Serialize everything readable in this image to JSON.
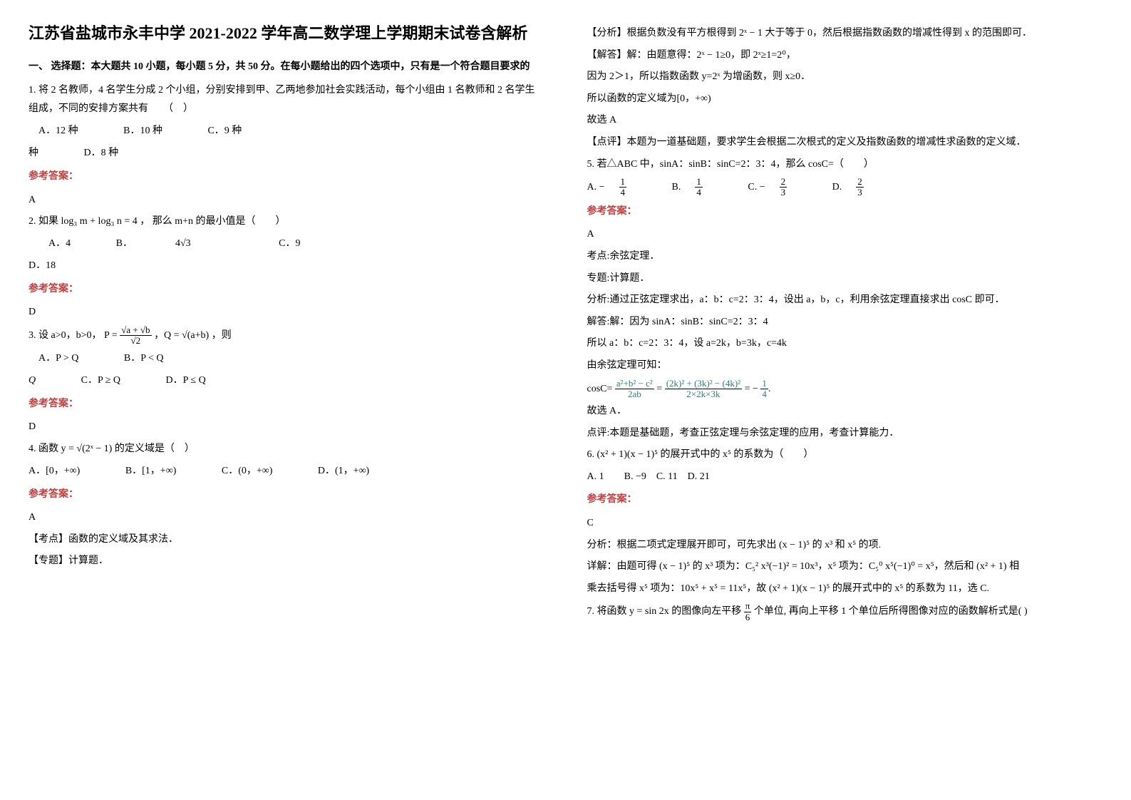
{
  "colors": {
    "ans_label": "#bf4040",
    "teal": "#2b7a7a",
    "text": "#000000",
    "background": "#ffffff"
  },
  "typography": {
    "title_fontsize": 22,
    "body_fontsize": 14,
    "font_family": "SimSun"
  },
  "title": "江苏省盐城市永丰中学 2021-2022 学年高二数学理上学期期末试卷含解析",
  "part1_heading": "一、 选择题：本大题共 10 小题，每小题 5 分，共 50 分。在每小题给出的四个选项中，只有是一个符合题目要求的",
  "q1": {
    "stem": "1. 将 2 名教师，4 名学生分成 2 个小组，分别安排到甲、乙两地参加社会实践活动，每个小组由 1 名教师和 2 名学生组成，不同的安排方案共有　　（　）",
    "optA": "A．12 种",
    "optB": "B．10 种",
    "optC": "C．9 种",
    "optD": "D．8 种",
    "ans_label": "参考答案：",
    "ans": "A"
  },
  "q2": {
    "stem_pre": "2. 如果 ",
    "expr": "log₃ m + log₃ n = 4",
    "stem_post": " ， 那么 m+n 的最小值是（　　）",
    "optA": "A．4",
    "optB_pre": "B．",
    "optB_expr": "4√3",
    "optC": "C．9",
    "optD": "D．18",
    "ans_label": "参考答案：",
    "ans": "D"
  },
  "q3": {
    "stem_pre": "3. 设 a>0，b>0，",
    "P_lhs": "P = ",
    "P_num": "√a + √b",
    "P_den": "√2",
    "Q_lhs": "，Q = ",
    "Q_expr": "√(a+b)",
    "stem_post": "，则",
    "optA": "A．P > Q",
    "optB": "B．P < Q",
    "optC": "C．P ≥ Q",
    "optD": "D．P ≤ Q",
    "ans_label": "参考答案：",
    "ans": "D"
  },
  "q4": {
    "stem_pre": "4. 函数 ",
    "fn": "y = √(2ˣ − 1)",
    "stem_post": " 的定义域是（　）",
    "optA": "A．[0，+∞)",
    "optB": "B．[1，+∞)",
    "optC": "C．(0，+∞)",
    "optD": "D．(1，+∞)",
    "ans_label": "参考答案：",
    "ans": "A",
    "kaodian": "【考点】函数的定义域及其求法．",
    "zhuanti": "【专题】计算题．",
    "fenxi": "【分析】根据负数没有平方根得到 2ˣ − 1 大于等于 0，然后根据指数函数的增减性得到 x 的范围即可．",
    "jieda_head": "【解答】解：由题意得：2ˣ − 1≥0，即 2ˣ≥1=2⁰，",
    "jieda_l2": "因为 2＞1，所以指数函数 y=2ˣ 为增函数，则 x≥0．",
    "jieda_l3": "所以函数的定义域为[0，+∞)",
    "jieda_l4": "故选 A",
    "dianping": "【点评】本题为一道基础题，要求学生会根据二次根式的定义及指数函数的增减性求函数的定义域．"
  },
  "q5": {
    "stem": "5. 若△ABC 中，sinA：sinB：sinC=2：3：4，那么 cosC=（　　）",
    "optA_pre": "A. −",
    "optB_pre": "B. ",
    "optC_pre": "C. −",
    "optD_pre": "D. ",
    "f14n": "1",
    "f14d": "4",
    "f23n": "2",
    "f23d": "3",
    "ans_label": "参考答案：",
    "ans": "A",
    "kaodian": "考点:余弦定理．",
    "zhuanti": "专题:计算题．",
    "fenxi": "分析:通过正弦定理求出，a：b：c=2：3：4，设出 a，b，c，利用余弦定理直接求出 cosC 即可．",
    "j1": "解答:解：因为 sinA：sinB：sinC=2：3：4",
    "j2": "所以 a：b：c=2：3：4，设 a=2k，b=3k，c=4k",
    "j3": "由余弦定理可知：",
    "cos_lhs": "cosC= ",
    "cos_num1": "a²+b² − c²",
    "cos_den1": "2ab",
    "cos_eq": " = ",
    "cos_num2": "(2k)² + (3k)² − (4k)²",
    "cos_den2": "2×2k×3k",
    "cos_res_pre": " = − ",
    "cos_res_n": "1",
    "cos_res_d": "4",
    "j4": "故选 A．",
    "dianping": "点评:本题是基础题，考查正弦定理与余弦定理的应用，考查计算能力．"
  },
  "q6": {
    "stem_pre": "6. ",
    "expr": "(x² + 1)(x − 1)⁵",
    "stem_mid": " 的展开式中的 ",
    "x5": "x⁵",
    "stem_post": " 的系数为（　　）",
    "opts": "A. 1　　B. −9　C. 11　D. 21",
    "ans_label": "参考答案：",
    "ans": "C",
    "fenxi_pre": "分析：根据二项式定理展开即可，可先求出 ",
    "fenxi_expr": "(x − 1)⁵",
    "fenxi_post": " 的 x³ 和 x⁵ 的项.",
    "xiangjie_pre": "详解：由题可得 ",
    "xj_e1": "(x − 1)⁵",
    "xj_t1": " 的 x³ 项为：",
    "xj_c1": "C₅² x³(−1)² = 10x³",
    "xj_t2": "，x⁵ 项为：",
    "xj_c2": "C₅⁰ x⁵(−1)⁰ = x⁵",
    "xj_t3": "，然后和 ",
    "xj_e2": "(x² + 1)",
    "xj_t4": " 相",
    "xj_line2_pre": "乘去括号得 ",
    "xj_x5": "x⁵",
    "xj_t5": " 项为：",
    "xj_sum": "10x⁵ + x⁵ = 11x⁵",
    "xj_t6": "，故 ",
    "xj_e3": "(x² + 1)(x − 1)⁵",
    "xj_t7": " 的展开式中的 ",
    "xj_t8": " 的系数为 11，选 C."
  },
  "q7": {
    "stem_pre": "7. 将函数 ",
    "fn": "y = sin 2x",
    "stem_mid": " 的图像向左平移 ",
    "shift_n": "π",
    "shift_d": "6",
    "stem_post": " 个单位, 再向上平移 1 个单位后所得图像对应的函数解析式是( )"
  }
}
